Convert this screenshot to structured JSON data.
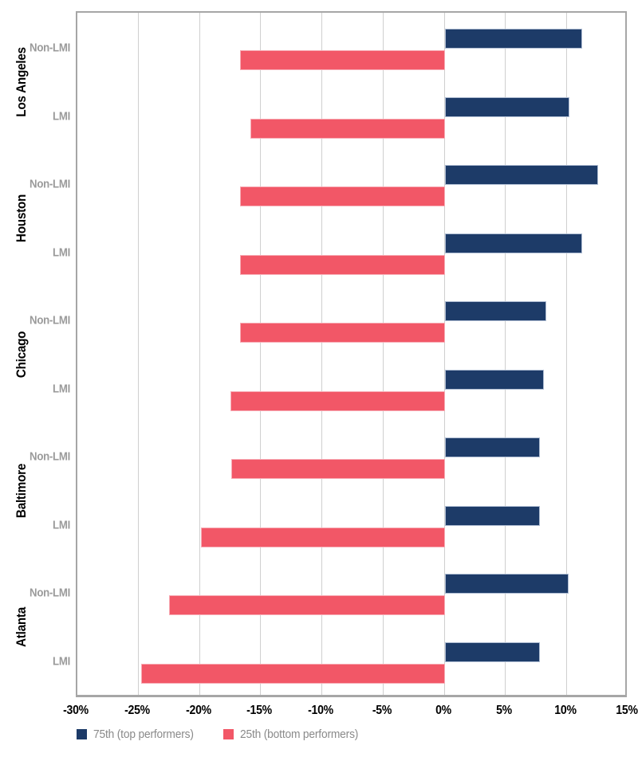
{
  "chart_data": {
    "type": "bar",
    "orientation": "horizontal",
    "title": "",
    "xlabel": "",
    "ylabel": "",
    "xlim": [
      -30,
      15
    ],
    "xtick_values": [
      -30,
      -25,
      -20,
      -15,
      -10,
      -5,
      0,
      5,
      10,
      15
    ],
    "xtick_labels": [
      "-30%",
      "-25%",
      "-20%",
      "-15%",
      "-10%",
      "-5%",
      "0%",
      "5%",
      "10%",
      "15%"
    ],
    "grid": "vertical",
    "legend_position": "bottom-left",
    "series": [
      {
        "key": "p75",
        "name": "75th (top performers)",
        "color": "#1d3b68"
      },
      {
        "key": "p25",
        "name": "25th (bottom performers)",
        "color": "#f25767"
      }
    ],
    "groups": [
      {
        "city": "Los Angeles",
        "rows": [
          {
            "label": "Non-LMI",
            "values": {
              "p75": 11.2,
              "p25": -16.7
            }
          },
          {
            "label": "LMI",
            "values": {
              "p75": 10.2,
              "p25": -15.9
            }
          }
        ]
      },
      {
        "city": "Houston",
        "rows": [
          {
            "label": "Non-LMI",
            "values": {
              "p75": 12.5,
              "p25": -16.7
            }
          },
          {
            "label": "LMI",
            "values": {
              "p75": 11.2,
              "p25": -16.7
            }
          }
        ]
      },
      {
        "city": "Chicago",
        "rows": [
          {
            "label": "Non-LMI",
            "values": {
              "p75": 8.3,
              "p25": -16.7
            }
          },
          {
            "label": "LMI",
            "values": {
              "p75": 8.1,
              "p25": -17.5
            }
          }
        ]
      },
      {
        "city": "Baltimore",
        "rows": [
          {
            "label": "Non-LMI",
            "values": {
              "p75": 7.8,
              "p25": -17.4
            }
          },
          {
            "label": "LMI",
            "values": {
              "p75": 7.8,
              "p25": -19.9
            }
          }
        ]
      },
      {
        "city": "Atlanta",
        "rows": [
          {
            "label": "Non-LMI",
            "values": {
              "p75": 10.1,
              "p25": -22.5
            }
          },
          {
            "label": "LMI",
            "values": {
              "p75": 7.8,
              "p25": -24.8
            }
          }
        ]
      }
    ],
    "colors": {
      "grid": "#cfcfcf",
      "plot_border": "#a6a6a6",
      "tick_label": "#000000",
      "row_label": "#9a9a9a",
      "city_label": "#000000",
      "legend_text": "#8a8a8a"
    }
  }
}
